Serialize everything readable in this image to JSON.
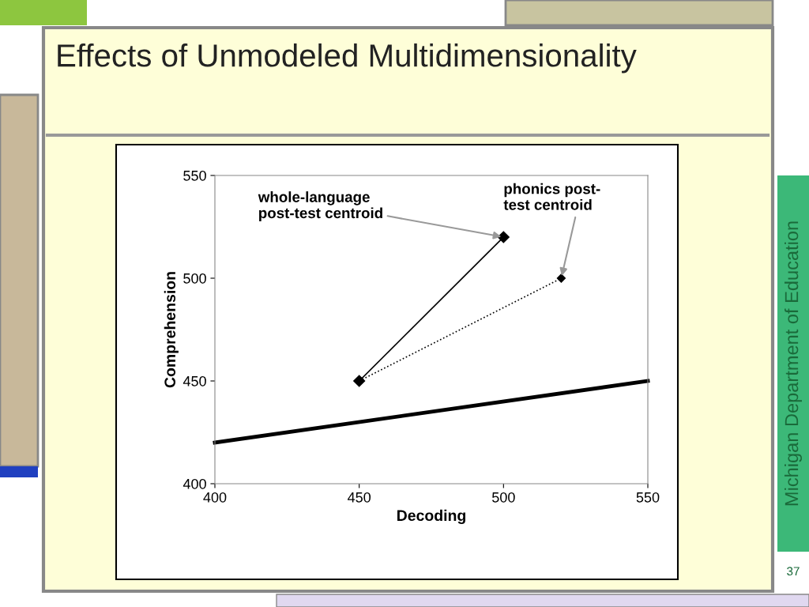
{
  "chart_data": {
    "type": "line",
    "title": "Effects of Unmodeled Multidimensionality",
    "xlabel": "Decoding",
    "ylabel": "Comprehension",
    "xlim": [
      400,
      550
    ],
    "ylim": [
      400,
      550
    ],
    "xticks": [
      400,
      450,
      500,
      550
    ],
    "yticks": [
      400,
      450,
      500,
      550
    ],
    "grid": false,
    "legend": false,
    "series": [
      {
        "color": "#000000",
        "x": [
          400,
          550
        ],
        "values": [
          420,
          450
        ],
        "marker": "none",
        "line_style": "solid"
      },
      {
        "color": "#000000",
        "x": [
          450,
          500
        ],
        "values": [
          450,
          520
        ],
        "marker": "diamond",
        "line_style": "solid"
      },
      {
        "color": "#000000",
        "x": [
          450,
          520
        ],
        "values": [
          450,
          500
        ],
        "marker": "diamond",
        "line_style": "dotted"
      }
    ],
    "annotations": [
      {
        "text": "whole-language\npost-test centroid",
        "x": 500,
        "y": 520
      },
      {
        "text": "phonics post-\ntest centroid",
        "x": 520,
        "y": 500
      },
      "Michigan Department of Education",
      "37"
    ]
  }
}
